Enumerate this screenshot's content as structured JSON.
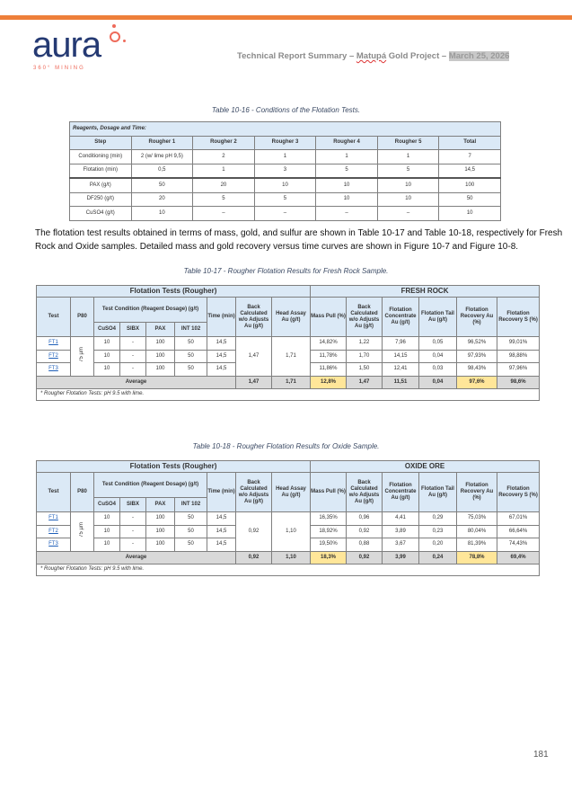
{
  "header": {
    "logo_text": "aura",
    "logo_sub": "360° MINING",
    "title_prefix": "Technical Report Summary – ",
    "title_project": "Matupá",
    "title_mid": " Gold Project – ",
    "title_date": "March 25, 2026",
    "accent": "#ee7f3a"
  },
  "table1": {
    "caption": "Table 10-16 - Conditions of the Flotation Tests.",
    "title": "Reagents, Dosage and Time:",
    "columns": [
      "Step",
      "Rougher 1",
      "Rougher 2",
      "Rougher 3",
      "Rougher 4",
      "Rougher 5",
      "Total"
    ],
    "rows": [
      [
        "Conditioning (min)",
        "2 (w/ lime pH 9,5)",
        "2",
        "1",
        "1",
        "1",
        "7"
      ],
      [
        "Flotation (min)",
        "0,5",
        "1",
        "3",
        "5",
        "5",
        "14,5"
      ],
      [
        "PAX (g/t)",
        "50",
        "20",
        "10",
        "10",
        "10",
        "100"
      ],
      [
        "DF250 (g/t)",
        "20",
        "5",
        "5",
        "10",
        "10",
        "50"
      ],
      [
        "CuSO4 (g/t)",
        "10",
        "–",
        "–",
        "–",
        "–",
        "10"
      ]
    ]
  },
  "paragraph": "The flotation test results obtained in terms of mass, gold, and sulfur are shown in Table 10-17 and Table 10-18, respectively for Fresh Rock and Oxide samples. Detailed mass and gold recovery versus time curves are shown in Figure 10-7 and Figure 10-8.",
  "results_headers": {
    "group_left": "Flotation Tests (Rougher)",
    "test": "Test",
    "p80": "P80",
    "condition": "Test Condition (Reagent Dosage) (g/t)",
    "cuso4": "CuSO4",
    "sibx": "SIBX",
    "pax": "PAX",
    "int102": "INT 102",
    "time": "Time (min)",
    "back_calc": "Back Calculated w/o Adjusts Au (g/t)",
    "head": "Head Assay Au (g/t)",
    "mass": "Mass Pull (%)",
    "back_calc2": "Back Calculated w/o Adjusts Au (g/t)",
    "conc": "Flotation Concentrate Au (g/t)",
    "tail": "Flotation Tail Au (g/t)",
    "rec_au": "Flotation Recovery Au (%)",
    "rec_s": "Flotation Recovery S (%)",
    "average": "Average",
    "p80_value": "75 µm",
    "note": "* Rougher Flotation Tests:  pH 9.5 with lime."
  },
  "table2": {
    "caption": "Table 10-17 - Rougher Flotation Results for Fresh Rock Sample.",
    "group_right": "FRESH ROCK",
    "back_calc": "1,47",
    "head": "1,71",
    "rows": [
      {
        "test": "FT1",
        "cuso4": "10",
        "sibx": "-",
        "pax": "100",
        "int102": "50",
        "time": "14,5",
        "mass": "14,82%",
        "back2": "1,22",
        "conc": "7,96",
        "tail": "0,05",
        "rec_au": "96,52%",
        "rec_s": "99,01%"
      },
      {
        "test": "FT2",
        "cuso4": "10",
        "sibx": "-",
        "pax": "100",
        "int102": "50",
        "time": "14,5",
        "mass": "11,78%",
        "back2": "1,70",
        "conc": "14,15",
        "tail": "0,04",
        "rec_au": "97,93%",
        "rec_s": "98,88%"
      },
      {
        "test": "FT3",
        "cuso4": "10",
        "sibx": "-",
        "pax": "100",
        "int102": "50",
        "time": "14,5",
        "mass": "11,86%",
        "back2": "1,50",
        "conc": "12,41",
        "tail": "0,03",
        "rec_au": "98,43%",
        "rec_s": "97,96%"
      }
    ],
    "avg": {
      "back": "1,47",
      "head": "1,71",
      "mass": "12,8%",
      "back2": "1,47",
      "conc": "11,51",
      "tail": "0,04",
      "rec_au": "97,6%",
      "rec_s": "98,6%"
    }
  },
  "table3": {
    "caption": "Table 10-18 - Rougher Flotation Results for Oxide Sample.",
    "group_right": "OXIDE ORE",
    "back_calc": "0,92",
    "head": "1,10",
    "rows": [
      {
        "test": "FT1",
        "cuso4": "10",
        "sibx": "-",
        "pax": "100",
        "int102": "50",
        "time": "14,5",
        "mass": "16,35%",
        "back2": "0,96",
        "conc": "4,41",
        "tail": "0,29",
        "rec_au": "75,03%",
        "rec_s": "67,01%"
      },
      {
        "test": "FT2",
        "cuso4": "10",
        "sibx": "-",
        "pax": "100",
        "int102": "50",
        "time": "14,5",
        "mass": "18,92%",
        "back2": "0,92",
        "conc": "3,89",
        "tail": "0,23",
        "rec_au": "80,04%",
        "rec_s": "66,64%"
      },
      {
        "test": "FT3",
        "cuso4": "10",
        "sibx": "-",
        "pax": "100",
        "int102": "50",
        "time": "14,5",
        "mass": "19,50%",
        "back2": "0,88",
        "conc": "3,67",
        "tail": "0,20",
        "rec_au": "81,39%",
        "rec_s": "74,43%"
      }
    ],
    "avg": {
      "back": "0,92",
      "head": "1,10",
      "mass": "18,3%",
      "back2": "0,92",
      "conc": "3,99",
      "tail": "0,24",
      "rec_au": "78,8%",
      "rec_s": "69,4%"
    }
  },
  "page_number": "181"
}
